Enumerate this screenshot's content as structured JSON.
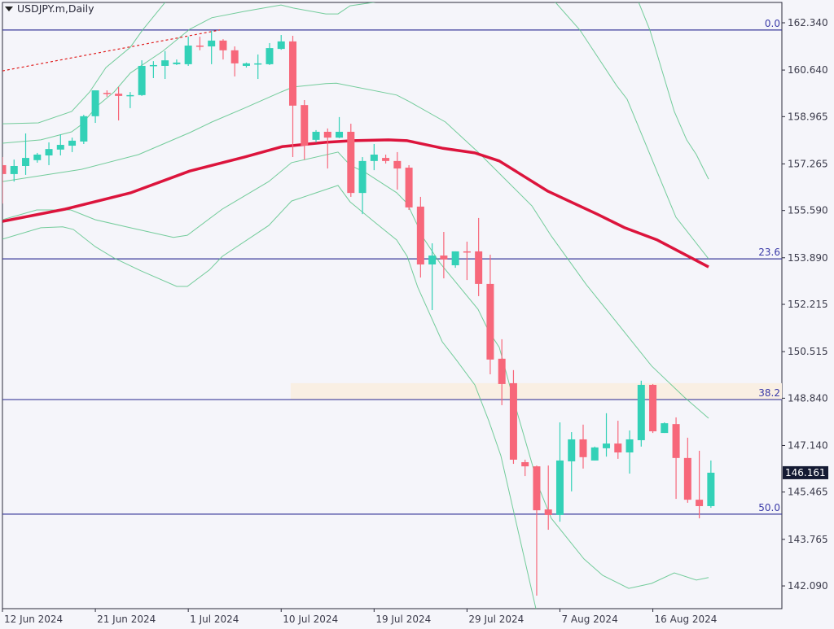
{
  "header": {
    "symbol_timeframe": "USDJPY.m,Daily"
  },
  "colors": {
    "background": "#f5f5fa",
    "bull": "#33d1b7",
    "bear": "#f7677a",
    "bands": "#5cc48a",
    "ma": "#dc143c",
    "fib": "#3a3a9a",
    "zone": "#f9efe3",
    "trendline": "#e02020",
    "current_price_bg": "#141a33"
  },
  "chart_data": {
    "type": "candlestick",
    "title": "USDJPY.m,Daily",
    "ylim": [
      141.0,
      163.2
    ],
    "y_ticks": [
      "162.340",
      "160.640",
      "158.965",
      "157.265",
      "155.590",
      "153.890",
      "152.215",
      "150.515",
      "148.840",
      "147.140",
      "145.465",
      "143.765",
      "142.090"
    ],
    "x_ticks": [
      {
        "index": 0,
        "label": "12 Jun 2024"
      },
      {
        "index": 8,
        "label": "21 Jun 2024"
      },
      {
        "index": 16,
        "label": "1 Jul 2024"
      },
      {
        "index": 24,
        "label": "10 Jul 2024"
      },
      {
        "index": 32,
        "label": "19 Jul 2024"
      },
      {
        "index": 40,
        "label": "29 Jul 2024"
      },
      {
        "index": 48,
        "label": "7 Aug 2024"
      },
      {
        "index": 56,
        "label": "16 Aug 2024"
      }
    ],
    "current_price": "146.161",
    "ohlc": [
      [
        157.22,
        157.51,
        155.84,
        156.9
      ],
      [
        156.9,
        157.42,
        156.63,
        157.19
      ],
      [
        157.19,
        158.36,
        156.87,
        157.48
      ],
      [
        157.4,
        157.66,
        157.31,
        157.6
      ],
      [
        157.57,
        158.04,
        157.22,
        157.8
      ],
      [
        157.78,
        158.33,
        157.57,
        157.95
      ],
      [
        157.92,
        158.21,
        157.69,
        158.1
      ],
      [
        158.07,
        159.03,
        157.98,
        158.98
      ],
      [
        158.98,
        159.91,
        158.74,
        159.91
      ],
      [
        159.82,
        159.91,
        159.68,
        159.79
      ],
      [
        159.79,
        160.03,
        158.83,
        159.71
      ],
      [
        159.71,
        159.85,
        159.27,
        159.74
      ],
      [
        159.74,
        160.99,
        159.71,
        160.79
      ],
      [
        160.79,
        160.96,
        160.35,
        160.82
      ],
      [
        160.79,
        161.32,
        160.32,
        160.99
      ],
      [
        160.85,
        161.02,
        160.82,
        160.91
      ],
      [
        160.85,
        161.84,
        160.79,
        161.52
      ],
      [
        161.52,
        161.84,
        161.35,
        161.49
      ],
      [
        161.49,
        162.05,
        160.85,
        161.7
      ],
      [
        161.7,
        161.75,
        161.02,
        161.35
      ],
      [
        161.35,
        161.49,
        160.41,
        160.88
      ],
      [
        160.79,
        160.91,
        160.73,
        160.88
      ],
      [
        160.85,
        161.2,
        160.32,
        160.88
      ],
      [
        160.85,
        161.61,
        160.82,
        161.43
      ],
      [
        161.4,
        161.9,
        161.37,
        161.67
      ],
      [
        161.67,
        161.87,
        157.51,
        159.36
      ],
      [
        159.38,
        159.56,
        157.42,
        157.92
      ],
      [
        158.13,
        158.48,
        158.04,
        158.42
      ],
      [
        158.42,
        158.54,
        157.1,
        158.21
      ],
      [
        158.21,
        158.95,
        158.19,
        158.42
      ],
      [
        158.42,
        158.71,
        156.08,
        156.22
      ],
      [
        156.22,
        157.51,
        155.46,
        157.37
      ],
      [
        157.37,
        157.98,
        157.04,
        157.6
      ],
      [
        157.48,
        157.6,
        157.28,
        157.37
      ],
      [
        157.37,
        157.69,
        156.34,
        157.1
      ],
      [
        157.13,
        157.22,
        155.61,
        155.7
      ],
      [
        155.73,
        156.08,
        153.18,
        153.65
      ],
      [
        153.65,
        154.41,
        152.01,
        153.97
      ],
      [
        153.97,
        154.82,
        153.15,
        153.83
      ],
      [
        153.62,
        154.12,
        153.53,
        154.12
      ],
      [
        154.12,
        154.47,
        153.09,
        154.09
      ],
      [
        154.12,
        155.32,
        152.51,
        152.95
      ],
      [
        152.95,
        154.0,
        149.7,
        150.23
      ],
      [
        150.26,
        150.96,
        148.59,
        149.35
      ],
      [
        149.38,
        149.85,
        146.48,
        146.63
      ],
      [
        146.54,
        146.63,
        146.04,
        146.39
      ],
      [
        146.39,
        146.42,
        141.74,
        144.81
      ],
      [
        144.84,
        146.42,
        144.11,
        144.64
      ],
      [
        144.64,
        147.97,
        144.4,
        146.6
      ],
      [
        146.57,
        147.62,
        145.49,
        147.36
      ],
      [
        147.36,
        147.89,
        146.31,
        146.72
      ],
      [
        146.6,
        147.1,
        146.6,
        147.07
      ],
      [
        147.04,
        148.3,
        146.74,
        147.21
      ],
      [
        147.21,
        148.03,
        146.66,
        146.89
      ],
      [
        146.89,
        147.68,
        146.13,
        147.36
      ],
      [
        147.33,
        149.47,
        147.1,
        149.32
      ],
      [
        149.32,
        149.35,
        147.59,
        147.65
      ],
      [
        147.59,
        147.97,
        147.59,
        147.94
      ],
      [
        147.91,
        148.15,
        145.22,
        146.69
      ],
      [
        146.69,
        147.42,
        145.08,
        145.19
      ],
      [
        145.19,
        146.95,
        144.52,
        144.96
      ],
      [
        144.96,
        146.6,
        144.9,
        146.161
      ]
    ],
    "moving_average": [
      [
        0,
        155.2
      ],
      [
        5.4,
        155.64
      ],
      [
        11.01,
        156.22
      ],
      [
        16.13,
        157.01
      ],
      [
        20.83,
        157.51
      ],
      [
        24.12,
        157.89
      ],
      [
        27.84,
        158.04
      ],
      [
        30.15,
        158.1
      ],
      [
        33.24,
        158.13
      ],
      [
        34.85,
        158.1
      ],
      [
        37.87,
        157.83
      ],
      [
        40.67,
        157.66
      ],
      [
        42.78,
        157.37
      ],
      [
        46.98,
        156.28
      ],
      [
        51.19,
        155.46
      ],
      [
        53.58,
        154.97
      ],
      [
        56.38,
        154.53
      ],
      [
        60.8,
        153.56
      ]
    ],
    "bands": [
      {
        "name": "upper-3",
        "points": [
          [
            0,
            158.71
          ],
          [
            3.09,
            158.74
          ],
          [
            5.96,
            159.15
          ],
          [
            7.5,
            159.85
          ],
          [
            8.91,
            160.73
          ],
          [
            11.01,
            161.46
          ],
          [
            12.06,
            162.08
          ],
          [
            14.17,
            163.16
          ],
          [
            16,
            164.2
          ],
          [
            52,
            164.2
          ],
          [
            54.7,
            163.16
          ],
          [
            55.74,
            162.08
          ],
          [
            57.85,
            159.15
          ],
          [
            58.91,
            158.13
          ],
          [
            59.75,
            157.6
          ],
          [
            60.8,
            156.72
          ]
        ]
      },
      {
        "name": "upper-2",
        "points": [
          [
            0,
            158.01
          ],
          [
            3.3,
            158.13
          ],
          [
            5.96,
            158.42
          ],
          [
            6.8,
            158.68
          ],
          [
            8.2,
            159.36
          ],
          [
            9.61,
            159.85
          ],
          [
            11.01,
            160.53
          ],
          [
            13.81,
            161.32
          ],
          [
            16.13,
            162.11
          ],
          [
            18.02,
            162.52
          ],
          [
            20.83,
            162.75
          ],
          [
            23.98,
            162.98
          ],
          [
            25.04,
            162.87
          ],
          [
            27.84,
            162.66
          ],
          [
            28.89,
            162.66
          ],
          [
            29.94,
            162.95
          ],
          [
            32.4,
            163.1
          ],
          [
            36,
            163.7
          ],
          [
            44,
            163.7
          ],
          [
            47.62,
            163.07
          ],
          [
            49.72,
            162.08
          ],
          [
            52.87,
            160.09
          ],
          [
            53.79,
            159.59
          ],
          [
            57.99,
            155.35
          ],
          [
            60.8,
            153.85
          ]
        ]
      },
      {
        "name": "middle",
        "points": [
          [
            0,
            156.63
          ],
          [
            6.8,
            157.07
          ],
          [
            11.71,
            157.6
          ],
          [
            16.13,
            158.39
          ],
          [
            18.02,
            158.77
          ],
          [
            20.83,
            159.27
          ],
          [
            23.98,
            159.85
          ],
          [
            25.04,
            160.03
          ],
          [
            27.84,
            160.15
          ],
          [
            28.75,
            160.17
          ],
          [
            33.94,
            159.74
          ],
          [
            35.06,
            159.5
          ],
          [
            38.15,
            158.77
          ],
          [
            40.95,
            157.69
          ],
          [
            43.06,
            156.81
          ],
          [
            45.58,
            155.76
          ],
          [
            47.26,
            154.67
          ],
          [
            50.28,
            152.92
          ],
          [
            53.09,
            151.46
          ],
          [
            55.89,
            150.0
          ],
          [
            58.7,
            148.88
          ],
          [
            60.8,
            148.12
          ]
        ]
      },
      {
        "name": "lower-2",
        "points": [
          [
            0,
            155.26
          ],
          [
            2.95,
            155.61
          ],
          [
            5.89,
            155.61
          ],
          [
            7.99,
            155.26
          ],
          [
            11.01,
            154.97
          ],
          [
            14.73,
            154.62
          ],
          [
            15.92,
            154.7
          ],
          [
            18.93,
            155.64
          ],
          [
            22.93,
            156.63
          ],
          [
            24.89,
            157.31
          ],
          [
            28.89,
            157.69
          ],
          [
            29.94,
            157.22
          ],
          [
            31.35,
            156.93
          ],
          [
            33.94,
            156.23
          ],
          [
            34.85,
            155.84
          ],
          [
            36.26,
            154.59
          ],
          [
            37.66,
            153.71
          ],
          [
            40.95,
            152.04
          ],
          [
            41.87,
            151.25
          ],
          [
            42.78,
            150.67
          ],
          [
            44.18,
            148.53
          ],
          [
            46.21,
            145.6
          ],
          [
            47.26,
            144.52
          ],
          [
            50.07,
            143.06
          ],
          [
            51.68,
            142.47
          ],
          [
            53.93,
            142.0
          ],
          [
            55.89,
            142.18
          ],
          [
            57.85,
            142.56
          ],
          [
            59.75,
            142.3
          ],
          [
            60.8,
            142.39
          ]
        ]
      },
      {
        "name": "lower-3",
        "points": [
          [
            0,
            154.56
          ],
          [
            3.3,
            154.97
          ],
          [
            5.19,
            155.0
          ],
          [
            6.1,
            154.91
          ],
          [
            7.99,
            154.29
          ],
          [
            9.61,
            153.88
          ],
          [
            11.92,
            153.42
          ],
          [
            15.01,
            152.86
          ],
          [
            15.92,
            152.86
          ],
          [
            17.81,
            153.45
          ],
          [
            18.93,
            153.94
          ],
          [
            22.93,
            155.05
          ],
          [
            24.89,
            155.93
          ],
          [
            28.89,
            156.49
          ],
          [
            29.94,
            155.9
          ],
          [
            32.05,
            155.17
          ],
          [
            33.94,
            154.53
          ],
          [
            34.85,
            153.94
          ],
          [
            35.76,
            152.83
          ],
          [
            37.87,
            150.87
          ],
          [
            39.06,
            150.23
          ],
          [
            40.67,
            149.32
          ],
          [
            41.87,
            148.03
          ],
          [
            42.92,
            146.77
          ],
          [
            45.93,
            141.27
          ],
          [
            46.42,
            140.04
          ]
        ]
      }
    ],
    "trendline": [
      [
        0,
        160.61
      ],
      [
        18.72,
        162.08
      ]
    ],
    "fibonacci": [
      {
        "label": "0.0",
        "price": 162.08
      },
      {
        "label": "23.6",
        "price": 153.85
      },
      {
        "label": "38.2",
        "price": 148.79
      },
      {
        "label": "50.0",
        "price": 144.67
      }
    ],
    "zone": {
      "from_index": 24.82,
      "price_top": 149.38,
      "price_bottom": 148.79
    }
  }
}
